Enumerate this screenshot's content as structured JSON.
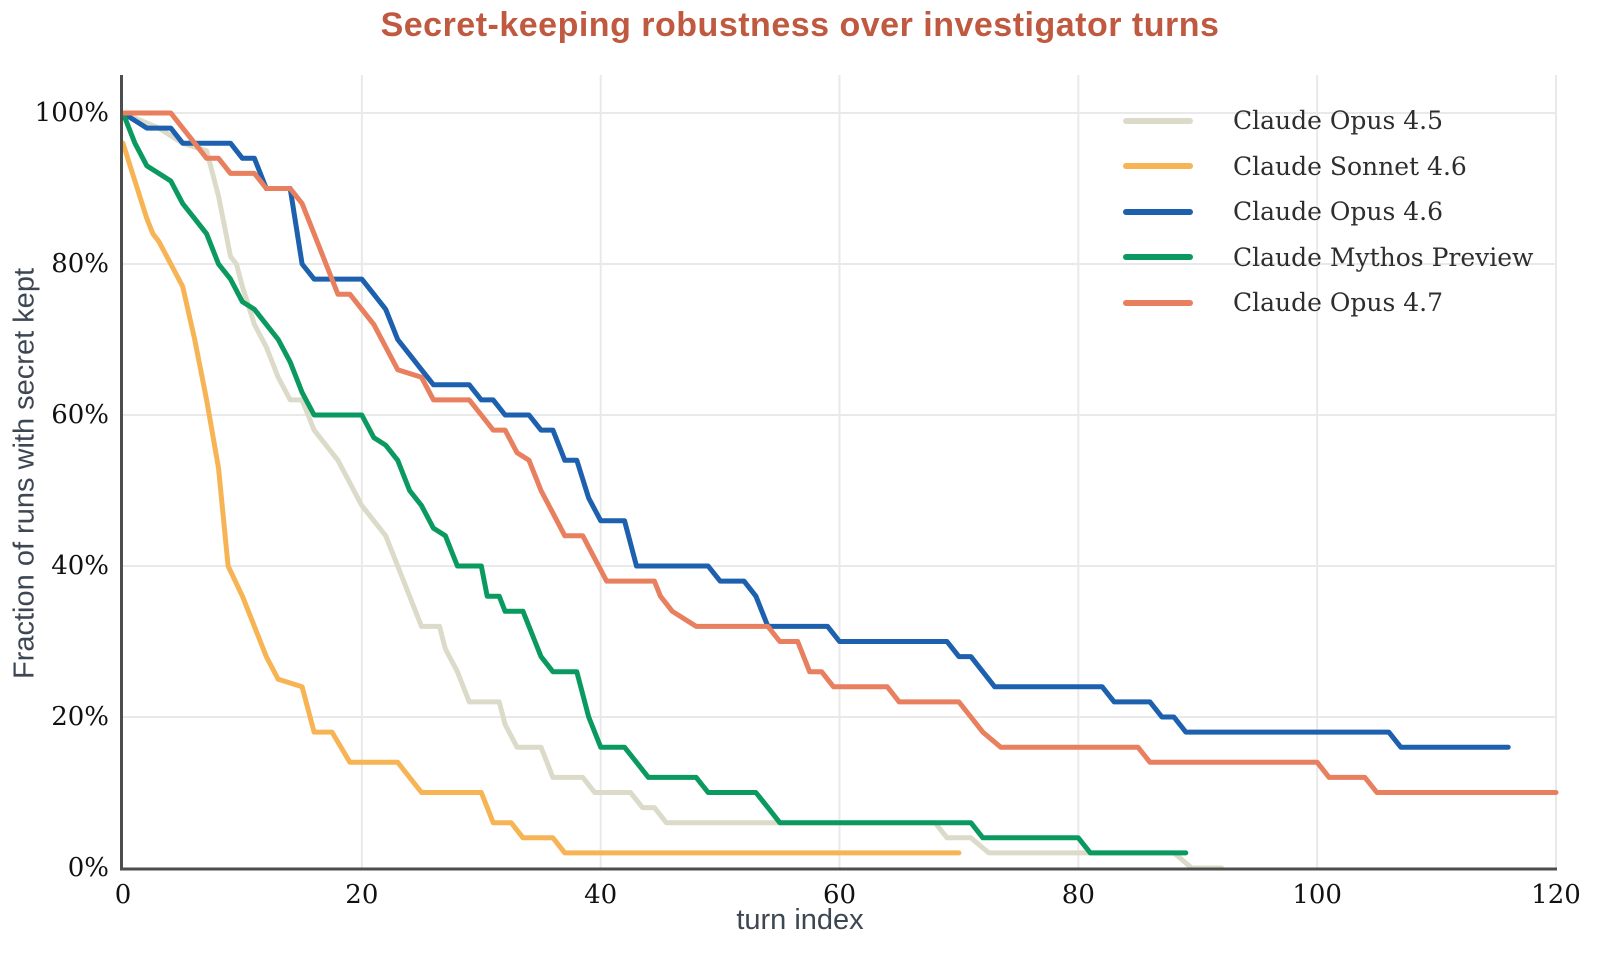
{
  "title": "Secret-keeping robustness over investigator turns",
  "title_color": "#bf5940",
  "axis": {
    "x_label": "turn index",
    "y_label": "Fraction of runs with secret kept",
    "spine_color": "#4d4d4d",
    "grid_color": "#e9e9e9"
  },
  "chart_data": {
    "type": "line",
    "title": "Secret-keeping robustness over investigator turns",
    "xlabel": "turn index",
    "ylabel": "Fraction of runs with secret kept",
    "xlim": [
      0,
      120
    ],
    "ylim": [
      0,
      100
    ],
    "x_ticks": [
      0,
      20,
      40,
      60,
      80,
      100,
      120
    ],
    "x_tick_labels": [
      "0",
      "20",
      "40",
      "60",
      "80",
      "100",
      "120"
    ],
    "y_ticks": [
      0,
      20,
      40,
      60,
      80,
      100
    ],
    "y_tick_labels": [
      "0%",
      "20%",
      "40%",
      "60%",
      "80%",
      "100%"
    ],
    "grid": true,
    "legend_position": "top-right",
    "series": [
      {
        "name": "Claude Opus 4.5",
        "color": "#dcdbc9",
        "points": [
          [
            0,
            100
          ],
          [
            3,
            98
          ],
          [
            5,
            96
          ],
          [
            7,
            95
          ],
          [
            8,
            89
          ],
          [
            9,
            81
          ],
          [
            9.5,
            80
          ],
          [
            10,
            77
          ],
          [
            11,
            72
          ],
          [
            12,
            69
          ],
          [
            13,
            65
          ],
          [
            14,
            62
          ],
          [
            15,
            62
          ],
          [
            16,
            58
          ],
          [
            17,
            56
          ],
          [
            18,
            54
          ],
          [
            19,
            51
          ],
          [
            20,
            48
          ],
          [
            21,
            46
          ],
          [
            22,
            44
          ],
          [
            23,
            40
          ],
          [
            24,
            36
          ],
          [
            25,
            32
          ],
          [
            26.5,
            32
          ],
          [
            27,
            29
          ],
          [
            28,
            26
          ],
          [
            29,
            22
          ],
          [
            31.5,
            22
          ],
          [
            32,
            19
          ],
          [
            33,
            16
          ],
          [
            35,
            16
          ],
          [
            36,
            12
          ],
          [
            38.5,
            12
          ],
          [
            39.5,
            10
          ],
          [
            42.5,
            10
          ],
          [
            43.5,
            8
          ],
          [
            44.5,
            8
          ],
          [
            45.5,
            6
          ],
          [
            68,
            6
          ],
          [
            69,
            4
          ],
          [
            71,
            4
          ],
          [
            72.5,
            2
          ],
          [
            88,
            2
          ],
          [
            89.5,
            0
          ],
          [
            92,
            0
          ]
        ]
      },
      {
        "name": "Claude Sonnet 4.6",
        "color": "#f7b455",
        "points": [
          [
            0,
            96
          ],
          [
            1,
            91
          ],
          [
            2,
            86
          ],
          [
            2.5,
            84
          ],
          [
            3,
            83
          ],
          [
            4,
            80
          ],
          [
            5,
            77
          ],
          [
            6,
            70
          ],
          [
            7,
            62
          ],
          [
            8,
            53
          ],
          [
            8.8,
            40
          ],
          [
            10,
            36
          ],
          [
            11,
            32
          ],
          [
            12,
            28
          ],
          [
            13,
            25
          ],
          [
            15,
            24
          ],
          [
            16,
            18
          ],
          [
            17.5,
            18
          ],
          [
            19,
            14
          ],
          [
            23,
            14
          ],
          [
            24,
            12
          ],
          [
            25,
            10
          ],
          [
            30,
            10
          ],
          [
            31,
            6
          ],
          [
            32.5,
            6
          ],
          [
            33.5,
            4
          ],
          [
            36,
            4
          ],
          [
            37,
            2
          ],
          [
            70,
            2
          ]
        ]
      },
      {
        "name": "Claude Opus 4.6",
        "color": "#1c60ae",
        "points": [
          [
            0,
            100
          ],
          [
            2,
            98
          ],
          [
            4,
            98
          ],
          [
            5,
            96
          ],
          [
            9,
            96
          ],
          [
            10,
            94
          ],
          [
            11,
            94
          ],
          [
            12,
            90
          ],
          [
            14,
            90
          ],
          [
            15,
            80
          ],
          [
            16,
            78
          ],
          [
            20,
            78
          ],
          [
            21,
            76
          ],
          [
            22,
            74
          ],
          [
            23,
            70
          ],
          [
            24,
            68
          ],
          [
            25,
            66
          ],
          [
            26,
            64
          ],
          [
            29,
            64
          ],
          [
            30,
            62
          ],
          [
            31,
            62
          ],
          [
            32,
            60
          ],
          [
            34,
            60
          ],
          [
            35,
            58
          ],
          [
            36,
            58
          ],
          [
            37,
            54
          ],
          [
            38,
            54
          ],
          [
            39,
            49
          ],
          [
            40,
            46
          ],
          [
            42,
            46
          ],
          [
            43,
            40
          ],
          [
            49,
            40
          ],
          [
            50,
            38
          ],
          [
            52,
            38
          ],
          [
            53,
            36
          ],
          [
            54,
            32
          ],
          [
            59,
            32
          ],
          [
            60,
            30
          ],
          [
            69,
            30
          ],
          [
            70,
            28
          ],
          [
            71,
            28
          ],
          [
            72,
            26
          ],
          [
            73,
            24
          ],
          [
            82,
            24
          ],
          [
            83,
            22
          ],
          [
            86,
            22
          ],
          [
            87,
            20
          ],
          [
            88,
            20
          ],
          [
            89,
            18
          ],
          [
            106,
            18
          ],
          [
            107,
            16
          ],
          [
            116,
            16
          ]
        ]
      },
      {
        "name": "Claude Mythos Preview",
        "color": "#0a9a60",
        "points": [
          [
            0,
            100
          ],
          [
            1,
            96
          ],
          [
            2,
            93
          ],
          [
            3,
            92
          ],
          [
            4,
            91
          ],
          [
            5,
            88
          ],
          [
            6,
            86
          ],
          [
            7,
            84
          ],
          [
            8,
            80
          ],
          [
            9,
            78
          ],
          [
            10,
            75
          ],
          [
            11,
            74
          ],
          [
            12,
            72
          ],
          [
            13,
            70
          ],
          [
            14,
            67
          ],
          [
            15,
            63
          ],
          [
            16,
            60
          ],
          [
            20,
            60
          ],
          [
            21,
            57
          ],
          [
            22,
            56
          ],
          [
            23,
            54
          ],
          [
            24,
            50
          ],
          [
            25,
            48
          ],
          [
            26,
            45
          ],
          [
            27,
            44
          ],
          [
            28,
            40
          ],
          [
            30,
            40
          ],
          [
            30.5,
            36
          ],
          [
            31.5,
            36
          ],
          [
            32,
            34
          ],
          [
            33.5,
            34
          ],
          [
            34.5,
            30
          ],
          [
            35,
            28
          ],
          [
            36,
            26
          ],
          [
            38,
            26
          ],
          [
            39,
            20
          ],
          [
            40,
            16
          ],
          [
            42,
            16
          ],
          [
            43,
            14
          ],
          [
            44,
            12
          ],
          [
            48,
            12
          ],
          [
            49,
            10
          ],
          [
            53,
            10
          ],
          [
            54,
            8
          ],
          [
            55,
            6
          ],
          [
            71,
            6
          ],
          [
            72,
            4
          ],
          [
            80,
            4
          ],
          [
            81,
            2
          ],
          [
            89,
            2
          ]
        ]
      },
      {
        "name": "Claude Opus 4.7",
        "color": "#e87f5e",
        "points": [
          [
            0,
            100
          ],
          [
            4,
            100
          ],
          [
            5,
            98
          ],
          [
            6,
            96
          ],
          [
            7,
            94
          ],
          [
            8,
            94
          ],
          [
            9,
            92
          ],
          [
            11,
            92
          ],
          [
            12,
            90
          ],
          [
            14,
            90
          ],
          [
            15,
            88
          ],
          [
            16,
            84
          ],
          [
            17,
            80
          ],
          [
            18,
            76
          ],
          [
            19,
            76
          ],
          [
            20,
            74
          ],
          [
            21,
            72
          ],
          [
            22,
            69
          ],
          [
            23,
            66
          ],
          [
            25,
            65
          ],
          [
            26,
            62
          ],
          [
            29,
            62
          ],
          [
            30,
            60
          ],
          [
            31,
            58
          ],
          [
            32,
            58
          ],
          [
            33,
            55
          ],
          [
            34,
            54
          ],
          [
            35,
            50
          ],
          [
            36,
            47
          ],
          [
            37,
            44
          ],
          [
            38.5,
            44
          ],
          [
            39.5,
            41
          ],
          [
            40.5,
            38
          ],
          [
            44.5,
            38
          ],
          [
            45,
            36
          ],
          [
            46,
            34
          ],
          [
            47,
            33
          ],
          [
            48,
            32
          ],
          [
            54,
            32
          ],
          [
            55,
            30
          ],
          [
            56.5,
            30
          ],
          [
            57.5,
            26
          ],
          [
            58.5,
            26
          ],
          [
            59.5,
            24
          ],
          [
            64,
            24
          ],
          [
            65,
            22
          ],
          [
            70,
            22
          ],
          [
            71,
            20
          ],
          [
            72,
            18
          ],
          [
            73.5,
            16
          ],
          [
            85,
            16
          ],
          [
            86,
            14
          ],
          [
            100,
            14
          ],
          [
            101,
            12
          ],
          [
            104,
            12
          ],
          [
            105,
            10
          ],
          [
            120,
            10
          ]
        ]
      }
    ]
  }
}
